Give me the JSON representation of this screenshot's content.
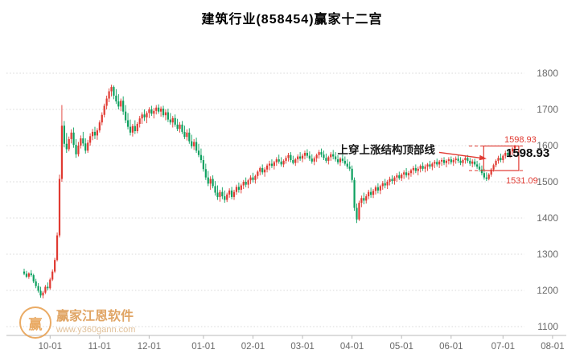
{
  "title": "建筑行业(858454)赢家十二宫",
  "annotation": {
    "text": "上穿上涨结构顶部线",
    "price_top_small": "1598.93",
    "price_current": "1598.93",
    "price_bottom": "1531.09"
  },
  "watermark": {
    "logo_char": "赢",
    "brand": "赢家江恩软件",
    "url": "www.y360gann.com"
  },
  "colors": {
    "up": "#e03a32",
    "down": "#0ca05f",
    "accent_red": "#e03a32",
    "watermark_orange": "#e6973f"
  },
  "chart_data": {
    "type": "candlestick",
    "title": "建筑行业(858454)赢家十二宫",
    "ylim": [
      1100,
      1800
    ],
    "yticks": [
      1100,
      1200,
      1300,
      1400,
      1500,
      1600,
      1700,
      1800
    ],
    "xticks": [
      {
        "label": "10-01",
        "i": 11
      },
      {
        "label": "11-01",
        "i": 32
      },
      {
        "label": "12-01",
        "i": 53
      },
      {
        "label": "01-01",
        "i": 76
      },
      {
        "label": "02-01",
        "i": 97
      },
      {
        "label": "03-01",
        "i": 118
      },
      {
        "label": "04-01",
        "i": 139
      },
      {
        "label": "05-01",
        "i": 160
      },
      {
        "label": "06-01",
        "i": 181
      },
      {
        "label": "07-01",
        "i": 203
      },
      {
        "label": "08-01",
        "i": 224
      }
    ],
    "guide_lines": [
      {
        "price": 1598.93
      },
      {
        "price": 1531.09
      }
    ],
    "highlight_box": {
      "start_index": 195.5,
      "end_index": 209,
      "top": 1598.93,
      "bottom": 1531.09
    },
    "last_close": 1598.93,
    "candles": [
      [
        1252,
        1260,
        1242,
        1246
      ],
      [
        1246,
        1254,
        1234,
        1238
      ],
      [
        1238,
        1250,
        1232,
        1247
      ],
      [
        1247,
        1256,
        1238,
        1242
      ],
      [
        1242,
        1246,
        1220,
        1225
      ],
      [
        1225,
        1232,
        1206,
        1212
      ],
      [
        1212,
        1220,
        1194,
        1199
      ],
      [
        1199,
        1210,
        1180,
        1186
      ],
      [
        1186,
        1198,
        1178,
        1194
      ],
      [
        1194,
        1215,
        1190,
        1210
      ],
      [
        1210,
        1222,
        1200,
        1206
      ],
      [
        1206,
        1235,
        1202,
        1230
      ],
      [
        1230,
        1258,
        1226,
        1252
      ],
      [
        1252,
        1290,
        1248,
        1284
      ],
      [
        1284,
        1360,
        1280,
        1352
      ],
      [
        1352,
        1520,
        1346,
        1508
      ],
      [
        1508,
        1712,
        1500,
        1655
      ],
      [
        1655,
        1668,
        1595,
        1605
      ],
      [
        1605,
        1635,
        1580,
        1590
      ],
      [
        1590,
        1625,
        1584,
        1618
      ],
      [
        1618,
        1645,
        1606,
        1636
      ],
      [
        1636,
        1650,
        1594,
        1602
      ],
      [
        1602,
        1618,
        1566,
        1576
      ],
      [
        1576,
        1610,
        1570,
        1600
      ],
      [
        1600,
        1628,
        1592,
        1620
      ],
      [
        1620,
        1638,
        1598,
        1606
      ],
      [
        1606,
        1620,
        1578,
        1586
      ],
      [
        1586,
        1616,
        1580,
        1608
      ],
      [
        1608,
        1634,
        1600,
        1626
      ],
      [
        1626,
        1646,
        1615,
        1638
      ],
      [
        1638,
        1652,
        1618,
        1628
      ],
      [
        1628,
        1648,
        1616,
        1642
      ],
      [
        1642,
        1670,
        1636,
        1664
      ],
      [
        1664,
        1692,
        1656,
        1685
      ],
      [
        1685,
        1716,
        1678,
        1710
      ],
      [
        1710,
        1738,
        1700,
        1730
      ],
      [
        1730,
        1758,
        1720,
        1750
      ],
      [
        1750,
        1768,
        1736,
        1762
      ],
      [
        1762,
        1766,
        1728,
        1738
      ],
      [
        1738,
        1756,
        1715,
        1722
      ],
      [
        1722,
        1742,
        1700,
        1708
      ],
      [
        1708,
        1730,
        1695,
        1724
      ],
      [
        1724,
        1736,
        1685,
        1694
      ],
      [
        1694,
        1712,
        1662,
        1670
      ],
      [
        1670,
        1690,
        1645,
        1652
      ],
      [
        1652,
        1672,
        1628,
        1636
      ],
      [
        1636,
        1660,
        1625,
        1654
      ],
      [
        1654,
        1670,
        1632,
        1640
      ],
      [
        1640,
        1665,
        1634,
        1660
      ],
      [
        1660,
        1682,
        1650,
        1675
      ],
      [
        1675,
        1692,
        1660,
        1686
      ],
      [
        1686,
        1700,
        1668,
        1678
      ],
      [
        1678,
        1695,
        1662,
        1690
      ],
      [
        1690,
        1706,
        1676,
        1700
      ],
      [
        1700,
        1710,
        1682,
        1688
      ],
      [
        1688,
        1704,
        1675,
        1696
      ],
      [
        1696,
        1712,
        1686,
        1705
      ],
      [
        1705,
        1714,
        1688,
        1694
      ],
      [
        1694,
        1708,
        1680,
        1702
      ],
      [
        1702,
        1710,
        1678,
        1684
      ],
      [
        1684,
        1700,
        1670,
        1692
      ],
      [
        1692,
        1702,
        1665,
        1672
      ],
      [
        1672,
        1690,
        1658,
        1664
      ],
      [
        1664,
        1682,
        1650,
        1676
      ],
      [
        1676,
        1686,
        1652,
        1658
      ],
      [
        1658,
        1674,
        1640,
        1646
      ],
      [
        1646,
        1665,
        1636,
        1658
      ],
      [
        1658,
        1668,
        1632,
        1638
      ],
      [
        1638,
        1655,
        1618,
        1624
      ],
      [
        1624,
        1645,
        1614,
        1636
      ],
      [
        1636,
        1648,
        1605,
        1612
      ],
      [
        1612,
        1630,
        1592,
        1598
      ],
      [
        1598,
        1618,
        1588,
        1610
      ],
      [
        1610,
        1622,
        1580,
        1586
      ],
      [
        1586,
        1605,
        1568,
        1574
      ],
      [
        1574,
        1592,
        1552,
        1560
      ],
      [
        1560,
        1572,
        1528,
        1535
      ],
      [
        1535,
        1550,
        1505,
        1512
      ],
      [
        1512,
        1530,
        1488,
        1495
      ],
      [
        1495,
        1515,
        1478,
        1508
      ],
      [
        1508,
        1518,
        1482,
        1488
      ],
      [
        1488,
        1502,
        1462,
        1470
      ],
      [
        1470,
        1490,
        1450,
        1458
      ],
      [
        1458,
        1478,
        1445,
        1472
      ],
      [
        1472,
        1485,
        1452,
        1460
      ],
      [
        1460,
        1476,
        1442,
        1450
      ],
      [
        1450,
        1470,
        1444,
        1465
      ],
      [
        1465,
        1482,
        1456,
        1476
      ],
      [
        1476,
        1486,
        1452,
        1458
      ],
      [
        1458,
        1478,
        1450,
        1472
      ],
      [
        1472,
        1492,
        1464,
        1486
      ],
      [
        1486,
        1498,
        1470,
        1478
      ],
      [
        1478,
        1495,
        1468,
        1490
      ],
      [
        1490,
        1505,
        1480,
        1500
      ],
      [
        1500,
        1512,
        1485,
        1492
      ],
      [
        1492,
        1508,
        1482,
        1504
      ],
      [
        1504,
        1518,
        1494,
        1512
      ],
      [
        1512,
        1525,
        1498,
        1505
      ],
      [
        1505,
        1520,
        1495,
        1516
      ],
      [
        1516,
        1532,
        1508,
        1528
      ],
      [
        1528,
        1542,
        1518,
        1538
      ],
      [
        1538,
        1548,
        1520,
        1526
      ],
      [
        1526,
        1540,
        1514,
        1534
      ],
      [
        1534,
        1550,
        1526,
        1545
      ],
      [
        1545,
        1558,
        1532,
        1550
      ],
      [
        1550,
        1562,
        1538,
        1544
      ],
      [
        1544,
        1558,
        1534,
        1554
      ],
      [
        1554,
        1568,
        1544,
        1562
      ],
      [
        1562,
        1575,
        1550,
        1556
      ],
      [
        1556,
        1568,
        1542,
        1548
      ],
      [
        1548,
        1562,
        1540,
        1558
      ],
      [
        1558,
        1572,
        1550,
        1566
      ],
      [
        1566,
        1580,
        1556,
        1574
      ],
      [
        1574,
        1582,
        1554,
        1560
      ],
      [
        1560,
        1572,
        1548,
        1552
      ],
      [
        1552,
        1566,
        1544,
        1562
      ],
      [
        1562,
        1576,
        1552,
        1570
      ],
      [
        1570,
        1582,
        1558,
        1564
      ],
      [
        1564,
        1578,
        1554,
        1572
      ],
      [
        1572,
        1586,
        1562,
        1580
      ],
      [
        1580,
        1590,
        1566,
        1572
      ],
      [
        1572,
        1584,
        1558,
        1564
      ],
      [
        1564,
        1576,
        1550,
        1556
      ],
      [
        1556,
        1570,
        1546,
        1565
      ],
      [
        1565,
        1578,
        1555,
        1574
      ],
      [
        1574,
        1588,
        1564,
        1582
      ],
      [
        1582,
        1592,
        1568,
        1575
      ],
      [
        1575,
        1586,
        1560,
        1566
      ],
      [
        1566,
        1578,
        1552,
        1558
      ],
      [
        1558,
        1572,
        1548,
        1568
      ],
      [
        1568,
        1582,
        1558,
        1576
      ],
      [
        1576,
        1588,
        1562,
        1570
      ],
      [
        1570,
        1582,
        1556,
        1562
      ],
      [
        1562,
        1574,
        1548,
        1554
      ],
      [
        1554,
        1568,
        1544,
        1564
      ],
      [
        1564,
        1576,
        1552,
        1558
      ],
      [
        1558,
        1570,
        1545,
        1550
      ],
      [
        1550,
        1562,
        1536,
        1542
      ],
      [
        1542,
        1556,
        1530,
        1536
      ],
      [
        1536,
        1545,
        1498,
        1505
      ],
      [
        1505,
        1512,
        1420,
        1428
      ],
      [
        1428,
        1440,
        1386,
        1396
      ],
      [
        1396,
        1448,
        1392,
        1442
      ],
      [
        1442,
        1462,
        1430,
        1455
      ],
      [
        1455,
        1470,
        1438,
        1448
      ],
      [
        1448,
        1466,
        1440,
        1460
      ],
      [
        1460,
        1478,
        1452,
        1472
      ],
      [
        1472,
        1484,
        1456,
        1464
      ],
      [
        1464,
        1480,
        1455,
        1475
      ],
      [
        1475,
        1490,
        1465,
        1485
      ],
      [
        1485,
        1496,
        1468,
        1476
      ],
      [
        1476,
        1492,
        1466,
        1488
      ],
      [
        1488,
        1502,
        1478,
        1496
      ],
      [
        1496,
        1508,
        1482,
        1490
      ],
      [
        1490,
        1505,
        1480,
        1500
      ],
      [
        1500,
        1514,
        1490,
        1508
      ],
      [
        1508,
        1518,
        1494,
        1502
      ],
      [
        1502,
        1516,
        1492,
        1512
      ],
      [
        1512,
        1524,
        1500,
        1518
      ],
      [
        1518,
        1528,
        1505,
        1510
      ],
      [
        1510,
        1524,
        1502,
        1520
      ],
      [
        1520,
        1532,
        1508,
        1526
      ],
      [
        1526,
        1538,
        1512,
        1518
      ],
      [
        1518,
        1530,
        1506,
        1524
      ],
      [
        1524,
        1536,
        1514,
        1532
      ],
      [
        1532,
        1544,
        1520,
        1538
      ],
      [
        1538,
        1548,
        1524,
        1530
      ],
      [
        1530,
        1542,
        1518,
        1536
      ],
      [
        1536,
        1548,
        1526,
        1544
      ],
      [
        1544,
        1554,
        1530,
        1536
      ],
      [
        1536,
        1548,
        1526,
        1542
      ],
      [
        1542,
        1552,
        1530,
        1548
      ],
      [
        1548,
        1558,
        1536,
        1542
      ],
      [
        1542,
        1554,
        1532,
        1550
      ],
      [
        1550,
        1560,
        1538,
        1555
      ],
      [
        1555,
        1564,
        1542,
        1548
      ],
      [
        1548,
        1560,
        1538,
        1556
      ],
      [
        1556,
        1566,
        1544,
        1560
      ],
      [
        1560,
        1568,
        1546,
        1552
      ],
      [
        1552,
        1562,
        1540,
        1558
      ],
      [
        1558,
        1568,
        1548,
        1562
      ],
      [
        1562,
        1570,
        1548,
        1554
      ],
      [
        1554,
        1566,
        1544,
        1560
      ],
      [
        1560,
        1570,
        1550,
        1564
      ],
      [
        1564,
        1574,
        1552,
        1558
      ],
      [
        1558,
        1568,
        1546,
        1552
      ],
      [
        1552,
        1564,
        1542,
        1560
      ],
      [
        1560,
        1572,
        1550,
        1566
      ],
      [
        1566,
        1574,
        1552,
        1558
      ],
      [
        1558,
        1566,
        1544,
        1550
      ],
      [
        1550,
        1562,
        1540,
        1556
      ],
      [
        1556,
        1564,
        1542,
        1548
      ],
      [
        1548,
        1558,
        1536,
        1542
      ],
      [
        1542,
        1552,
        1528,
        1534
      ],
      [
        1534,
        1545,
        1518,
        1524
      ],
      [
        1524,
        1536,
        1506,
        1512
      ],
      [
        1512,
        1526,
        1502,
        1508
      ],
      [
        1508,
        1524,
        1504,
        1520
      ],
      [
        1520,
        1538,
        1514,
        1534
      ],
      [
        1534,
        1550,
        1528,
        1546
      ],
      [
        1546,
        1562,
        1540,
        1558
      ],
      [
        1558,
        1572,
        1550,
        1566
      ],
      [
        1566,
        1578,
        1554,
        1560
      ],
      [
        1560,
        1576,
        1552,
        1572
      ],
      [
        1572,
        1586,
        1564,
        1580
      ],
      [
        1580,
        1590,
        1568,
        1574
      ],
      [
        1574,
        1588,
        1566,
        1584
      ],
      [
        1584,
        1596,
        1574,
        1592
      ],
      [
        1592,
        1602,
        1582,
        1598.93
      ]
    ]
  }
}
